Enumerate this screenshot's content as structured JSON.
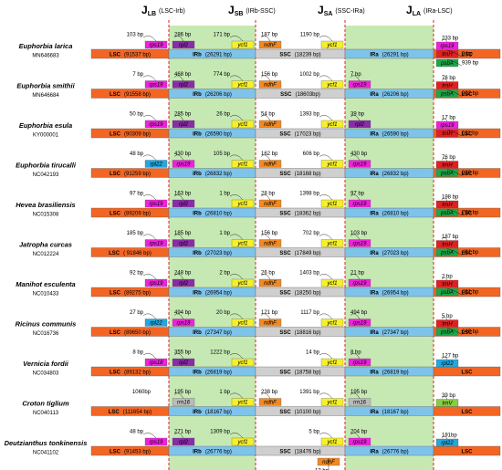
{
  "header": {
    "junctions": [
      {
        "symbol": "J",
        "sub": "LB",
        "label": "(LSC-Irb)"
      },
      {
        "symbol": "J",
        "sub": "SB",
        "label": "(IRb-SSC)"
      },
      {
        "symbol": "J",
        "sub": "SA",
        "label": "(SSC-IRa)"
      },
      {
        "symbol": "J",
        "sub": "LA",
        "label": "(IRa-LSC)"
      }
    ]
  },
  "gene_colors": {
    "rps19": "#ee22dd",
    "rpl2": "#8a2ca8",
    "ycf1": "#f5f02a",
    "ndhF": "#f08a24",
    "trnH": "#e02020",
    "psbA": "#1aa84a",
    "rpl22": "#22a8e0",
    "rps18": "#ee22dd",
    "rrn16": "#bbbbbb",
    "trnV": "#88cc44"
  },
  "region_colors": [
    "#f26522",
    "#7ec3ea",
    "#cfcfcf",
    "#7ec3ea",
    "#f26522"
  ],
  "rows": [
    {
      "species": "Euphorbia larica",
      "accession": "MN646683",
      "regions": [
        {
          "name": "LSC",
          "size": "(91537 bp)"
        },
        {
          "name": "IRb",
          "size": "(26291 bp)"
        },
        {
          "name": "SSC",
          "size": "(18239 bp)"
        },
        {
          "name": "IRa",
          "size": "(26291 bp)"
        },
        {
          "name": "LSC"
        }
      ],
      "junctions": [
        [
          {
            "gene": "rps19",
            "bp": "103 bp"
          },
          {
            "gene": "rpl2",
            "bp": "286 bp"
          }
        ],
        [
          {
            "gene": "ycf1",
            "bp": "171 bp"
          },
          {
            "gene": "ndhF",
            "bp": "187 bp"
          }
        ],
        [
          {
            "gene": "ycf1",
            "bp": "1190 bp"
          }
        ],
        [
          {
            "gene": "rps19",
            "bp": "233 bp"
          },
          {
            "gene": "trnH",
            "bp": "3 bp"
          },
          {
            "gene": "psbA",
            "bp": "939 bp"
          }
        ]
      ]
    },
    {
      "species": "Euphorbia smithii",
      "accession": "MN646684",
      "regions": [
        {
          "name": "LSC",
          "size": "(91558 bp)"
        },
        {
          "name": "IRb",
          "size": "(26206 bp)"
        },
        {
          "name": "SSC",
          "size": "(18603bp)"
        },
        {
          "name": "IRa",
          "size": "(26206 bp)"
        },
        {
          "name": "LSC"
        }
      ],
      "junctions": [
        [
          {
            "gene": "rps19",
            "bp": "7 bp"
          },
          {
            "gene": "rpl2",
            "bp": "468 bp"
          }
        ],
        [
          {
            "gene": "ycf1",
            "bp": "774 bp"
          },
          {
            "gene": "ndhF",
            "bp": "156 bp"
          }
        ],
        [
          {
            "gene": "ycf1",
            "bp": "1002 bp"
          },
          {
            "gene": "rps19",
            "bp": "7 bp"
          }
        ],
        [
          {
            "gene": "trnH",
            "bp": "76 bp"
          },
          {
            "gene": "psbA",
            "bp": "902 bp"
          }
        ]
      ]
    },
    {
      "species": "Euphorbia esula",
      "accession": "KY000001",
      "regions": [
        {
          "name": "LSC",
          "size": "(90309 bp)"
        },
        {
          "name": "IRb",
          "size": "(26590 bp)"
        },
        {
          "name": "SSC",
          "size": "(17023 bp)"
        },
        {
          "name": "IRa",
          "size": "(26590 bp)"
        },
        {
          "name": "LSC"
        }
      ],
      "junctions": [
        [
          {
            "gene": "rps19",
            "bp": "50 bp"
          },
          {
            "gene": "rpl2",
            "bp": "285 bp"
          }
        ],
        [
          {
            "gene": "ycf1",
            "bp": "26 bp"
          },
          {
            "gene": "ndhF",
            "bp": "54 bp"
          }
        ],
        [
          {
            "gene": "ycf1",
            "bp": "1393 bp"
          },
          {
            "gene": "rpl2",
            "bp": "39 bp"
          }
        ],
        [
          {
            "gene": "rps19",
            "bp": "17 bp"
          },
          {
            "gene": "trnH",
            "bp": "611 bp"
          }
        ]
      ]
    },
    {
      "species": "Euphorbia tirucalli",
      "accession": "NC042193",
      "regions": [
        {
          "name": "LSC",
          "size": "(91259 bp)"
        },
        {
          "name": "IRb",
          "size": "(26832 bp)"
        },
        {
          "name": "SSC",
          "size": "(18168 bp)"
        },
        {
          "name": "IRa",
          "size": "(26832 bp)"
        },
        {
          "name": "LSC"
        }
      ],
      "junctions": [
        [
          {
            "gene": "rpl22",
            "bp": "48 bp"
          },
          {
            "gene": "rps19",
            "bp": "430 bp"
          }
        ],
        [
          {
            "gene": "ycf1",
            "bp": "105 bp"
          },
          {
            "gene": "ndhF",
            "bp": "162 bp"
          }
        ],
        [
          {
            "gene": "ycf1",
            "bp": "606 bp"
          },
          {
            "gene": "rps19",
            "bp": "430 bp"
          }
        ],
        [
          {
            "gene": "trnH",
            "bp": "76 bp"
          },
          {
            "gene": "psbA",
            "bp": "920 bp"
          }
        ]
      ]
    },
    {
      "species": "Hevea brasiliensis",
      "accession": "NC015308",
      "regions": [
        {
          "name": "LSC",
          "size": "(89209 bp)"
        },
        {
          "name": "IRb",
          "size": "(26810 bp)"
        },
        {
          "name": "SSC",
          "size": "(18362 bp)"
        },
        {
          "name": "IRa",
          "size": "(26810 bp)"
        },
        {
          "name": "LSC"
        }
      ],
      "junctions": [
        [
          {
            "gene": "rps19",
            "bp": "97 bp"
          },
          {
            "gene": "rpl2",
            "bp": "163 bp"
          }
        ],
        [
          {
            "gene": "ycf1",
            "bp": "1 bp"
          },
          {
            "gene": "ndhF",
            "bp": "28 bp"
          }
        ],
        [
          {
            "gene": "ycf1",
            "bp": "1398 bp"
          },
          {
            "gene": "rps19",
            "bp": "97 bp"
          }
        ],
        [
          {
            "gene": "trnH",
            "bp": "198 bp"
          },
          {
            "gene": "psbA",
            "bp": "790 bp"
          }
        ]
      ]
    },
    {
      "species": "Jatropha curcas",
      "accession": "NC012224",
      "regions": [
        {
          "name": "LSC",
          "size": "( 91846 bp)"
        },
        {
          "name": "IRb",
          "size": "(27023 bp)"
        },
        {
          "name": "SSC",
          "size": "(17849 bp)"
        },
        {
          "name": "IRa",
          "size": "(27023 bp)"
        },
        {
          "name": "LSC"
        }
      ],
      "junctions": [
        [
          {
            "gene": "rps19",
            "bp": "185 bp"
          },
          {
            "gene": "rpl2",
            "bp": "185 bp"
          }
        ],
        [
          {
            "gene": "ycf1",
            "bp": "1 bp"
          },
          {
            "gene": "ndhF",
            "bp": "156 bp"
          }
        ],
        [
          {
            "gene": "ycf1",
            "bp": "702 bp"
          },
          {
            "gene": "rps19",
            "bp": "103 bp"
          }
        ],
        [
          {
            "gene": "trnH",
            "bp": "187 bp"
          },
          {
            "gene": "psbA",
            "bp": "461 bp"
          }
        ]
      ]
    },
    {
      "species": "Manihot esculenta",
      "accession": "NC010433",
      "regions": [
        {
          "name": "LSC",
          "size": "(89275 bp)"
        },
        {
          "name": "IRb",
          "size": "(26954 bp)"
        },
        {
          "name": "SSC",
          "size": "(18250 bp)"
        },
        {
          "name": "IRa",
          "size": "(26954 bp)"
        },
        {
          "name": "LSC"
        }
      ],
      "junctions": [
        [
          {
            "gene": "rps19",
            "bp": "92 bp"
          },
          {
            "gene": "rpl2",
            "bp": "248 bp"
          }
        ],
        [
          {
            "gene": "ycf1",
            "bp": "2 bp"
          },
          {
            "gene": "ndhF",
            "bp": "26 bp"
          }
        ],
        [
          {
            "gene": "ycf1",
            "bp": "1403 bp"
          },
          {
            "gene": "rps19",
            "bp": "21 bp"
          }
        ],
        [
          {
            "gene": "trnH",
            "bp": "2 bp"
          },
          {
            "gene": "psbA",
            "bp": "461 bp"
          }
        ]
      ]
    },
    {
      "species": "Ricinus communis",
      "accession": "NC016736",
      "regions": [
        {
          "name": "LSC",
          "size": "(89650 bp)"
        },
        {
          "name": "IRb",
          "size": "(27347 bp)"
        },
        {
          "name": "SSC",
          "size": "(18816 bp)"
        },
        {
          "name": "IRa",
          "size": "(27347 bp)"
        },
        {
          "name": "LSC"
        }
      ],
      "junctions": [
        [
          {
            "gene": "rpl22",
            "bp": "27 bp"
          },
          {
            "gene": "rps19",
            "bp": "494 bp"
          }
        ],
        [
          {
            "gene": "ycf1",
            "bp": "20 bp"
          },
          {
            "gene": "ndhF",
            "bp": "121 bp"
          }
        ],
        [
          {
            "gene": "ycf1",
            "bp": "1117 bp"
          },
          {
            "gene": "rps19",
            "bp": "494 bp"
          }
        ],
        [
          {
            "gene": "trnH",
            "bp": "5 bp"
          },
          {
            "gene": "psbA",
            "bp": "640 bp"
          }
        ]
      ]
    },
    {
      "species": "Vernicia fordii",
      "accession": "NC034803",
      "regions": [
        {
          "name": "LSC",
          "size": "(89132 bp)"
        },
        {
          "name": "IRb",
          "size": "(26819 bp)"
        },
        {
          "name": "SSC",
          "size": "(18758 bp)"
        },
        {
          "name": "IRa",
          "size": "(26819 bp)"
        },
        {
          "name": "LSC"
        }
      ],
      "junctions": [
        [
          {
            "gene": "rps18",
            "bp": "8 bp"
          },
          {
            "gene": "rpl2",
            "bp": "355 bp"
          }
        ],
        [
          {
            "gene": "ycf1",
            "bp": "1222 bp"
          }
        ],
        [
          {
            "gene": "ycf1",
            "bp": "14 bp"
          },
          {
            "gene": "rps19",
            "bp": "8 bp"
          }
        ],
        [
          {
            "gene": "rpl22",
            "bp": "127 bp"
          }
        ]
      ]
    },
    {
      "species": "Croton tiglium",
      "accession": "NC040113",
      "regions": [
        {
          "name": "LSC",
          "size": "(111654 bp)"
        },
        {
          "name": "IRb",
          "size": "(18167 bp)"
        },
        {
          "name": "SSC",
          "size": "(10100 bp)"
        },
        {
          "name": "IRa",
          "size": "(18167 bp)"
        },
        {
          "name": "LSC"
        }
      ],
      "junctions": [
        [
          {
            "bp": "1060bp"
          },
          {
            "gene": "rrn16",
            "bp": "195 bp"
          }
        ],
        [
          {
            "gene": "ycf1",
            "bp": "1 bp"
          },
          {
            "gene": "ndhF",
            "bp": "238 bp"
          }
        ],
        [
          {
            "gene": "ycf1",
            "bp": "1391 bp"
          },
          {
            "gene": "rrn16",
            "bp": "195 bp"
          }
        ],
        [
          {
            "gene": "trnV",
            "bp": "39 bp"
          }
        ]
      ]
    },
    {
      "species": "Deutzianthus tonkinensis",
      "accession": "NC041102",
      "regions": [
        {
          "name": "LSC",
          "size": "(91453 bp)"
        },
        {
          "name": "IRb",
          "size": "(26776 bp)"
        },
        {
          "name": "SSC",
          "size": "(18476 bp)"
        },
        {
          "name": "IRa",
          "size": "(26776 bp)"
        },
        {
          "name": "LSC"
        }
      ],
      "junctions": [
        [
          {
            "gene": "rps19",
            "bp": "48 bp"
          },
          {
            "gene": "rpl2",
            "bp": "271 bp"
          }
        ],
        [
          {
            "gene": "ycf1",
            "bp": "1309 bp"
          }
        ],
        [
          {
            "gene": "ycf1",
            "bp": "5 bp"
          },
          {
            "gene": "rps19",
            "bp": "204 bp"
          },
          {
            "gene": "ndhF",
            "bp": "13 bp"
          }
        ],
        [
          {
            "gene": "rpl22",
            "bp": "191bp"
          }
        ]
      ]
    }
  ]
}
